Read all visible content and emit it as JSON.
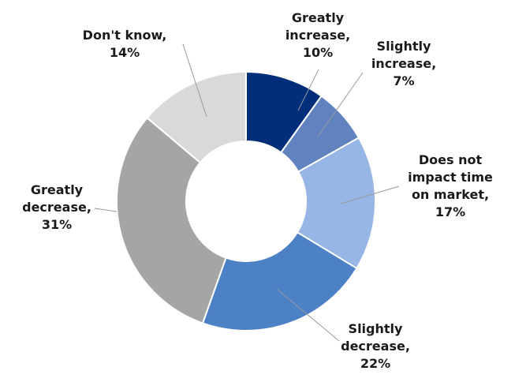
{
  "chart_data": {
    "type": "pie",
    "donut": true,
    "title": "",
    "slices": [
      {
        "label_lines": [
          "Greatly",
          "increase,",
          "10%"
        ],
        "category": "Greatly increase",
        "value": 10,
        "color": "#002e7a"
      },
      {
        "label_lines": [
          "Slightly",
          "increase,",
          "7%"
        ],
        "category": "Slightly increase",
        "value": 7,
        "color": "#6083c0"
      },
      {
        "label_lines": [
          "Does not",
          "impact time",
          "on market,",
          "17%"
        ],
        "category": "Does not impact time on market",
        "value": 17,
        "color": "#97b5e5"
      },
      {
        "label_lines": [
          "Slightly",
          "decrease,",
          "22%"
        ],
        "category": "Slightly decrease",
        "value": 22,
        "color": "#4d81c6"
      },
      {
        "label_lines": [
          "Greatly",
          "decrease,",
          "31%"
        ],
        "category": "Greatly decrease",
        "value": 31,
        "color": "#a5a5a5"
      },
      {
        "label_lines": [
          "Don't know,",
          "14%"
        ],
        "category": "Don't know",
        "value": 14,
        "color": "#d9d9d9"
      }
    ]
  }
}
